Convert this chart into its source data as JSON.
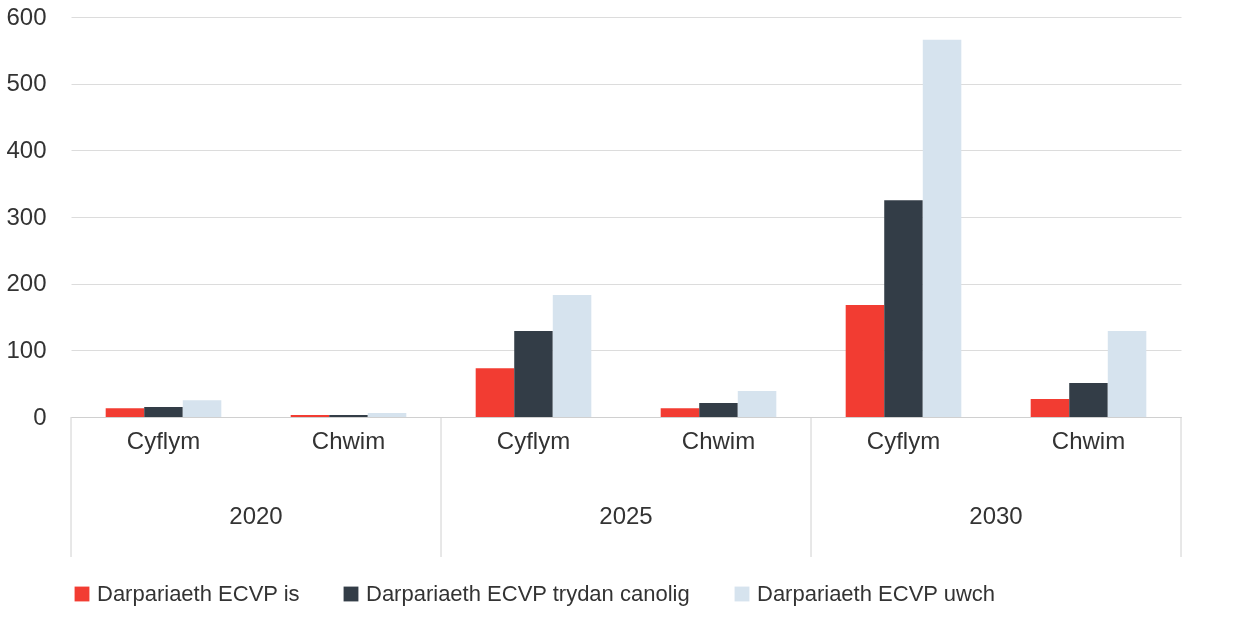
{
  "chart_data": {
    "type": "bar",
    "categories": [
      "Cyflym",
      "Chwim",
      "Cyflym",
      "Chwim",
      "Cyflym",
      "Chwim"
    ],
    "annotations": [
      "2020",
      "2025",
      "2030"
    ],
    "series": [
      {
        "name": "Darpariaeth ECVP is",
        "color": "#f23c32",
        "values": [
          13,
          3,
          73,
          13,
          168,
          27
        ]
      },
      {
        "name": "Darpariaeth ECVP trydan canolig",
        "color": "#333d47",
        "values": [
          15,
          3,
          129,
          21,
          325,
          51
        ]
      },
      {
        "name": "Darpariaeth ECVP uwch",
        "color": "#d6e3ee",
        "values": [
          25,
          6,
          183,
          39,
          566,
          129
        ]
      }
    ],
    "ylim": [
      0,
      600
    ],
    "yticks": [
      0,
      100,
      200,
      300,
      400,
      500,
      600
    ],
    "grid": "y",
    "legend": "bottom"
  }
}
